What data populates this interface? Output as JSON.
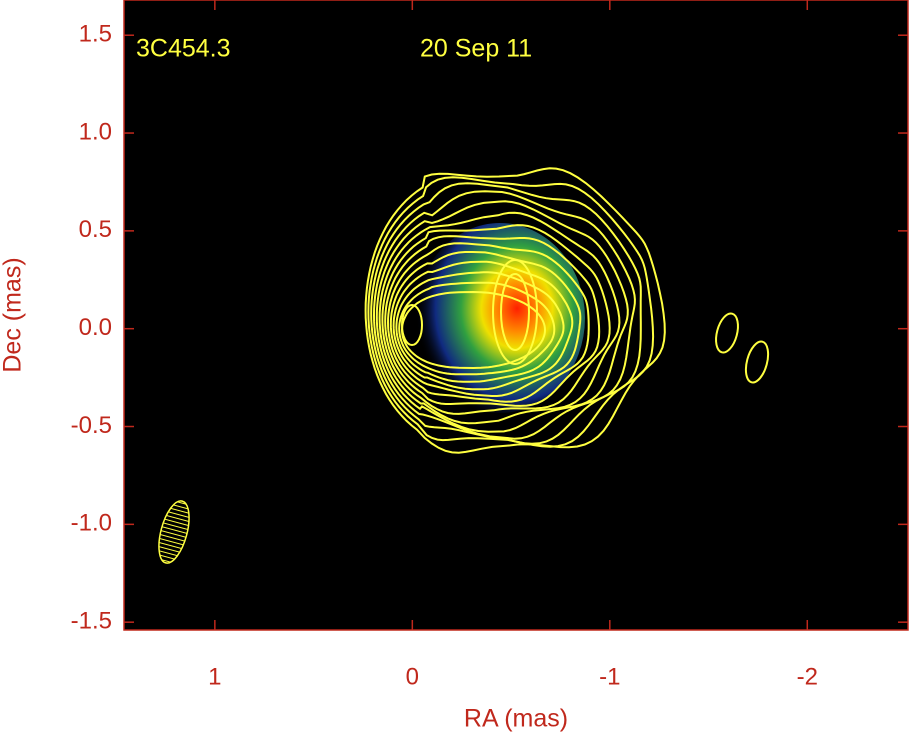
{
  "chart_data": {
    "type": "image",
    "title": "3C454.3",
    "subtitle": "20 Sep 11",
    "x_label": "RA (mas)",
    "y_label": "Dec (mas)",
    "xlim": [
      1.46,
      -2.51
    ],
    "ylim": [
      -1.54,
      1.68
    ],
    "xticks": [
      1,
      0,
      -1,
      -2
    ],
    "yticks": [
      1.5,
      {
        "value": 1,
        "label": "1.0"
      },
      0.5,
      {
        "value": 0,
        "label": "0.0"
      },
      -0.5,
      {
        "value": -1,
        "label": "-1.0"
      },
      -1.5
    ]
  }
}
